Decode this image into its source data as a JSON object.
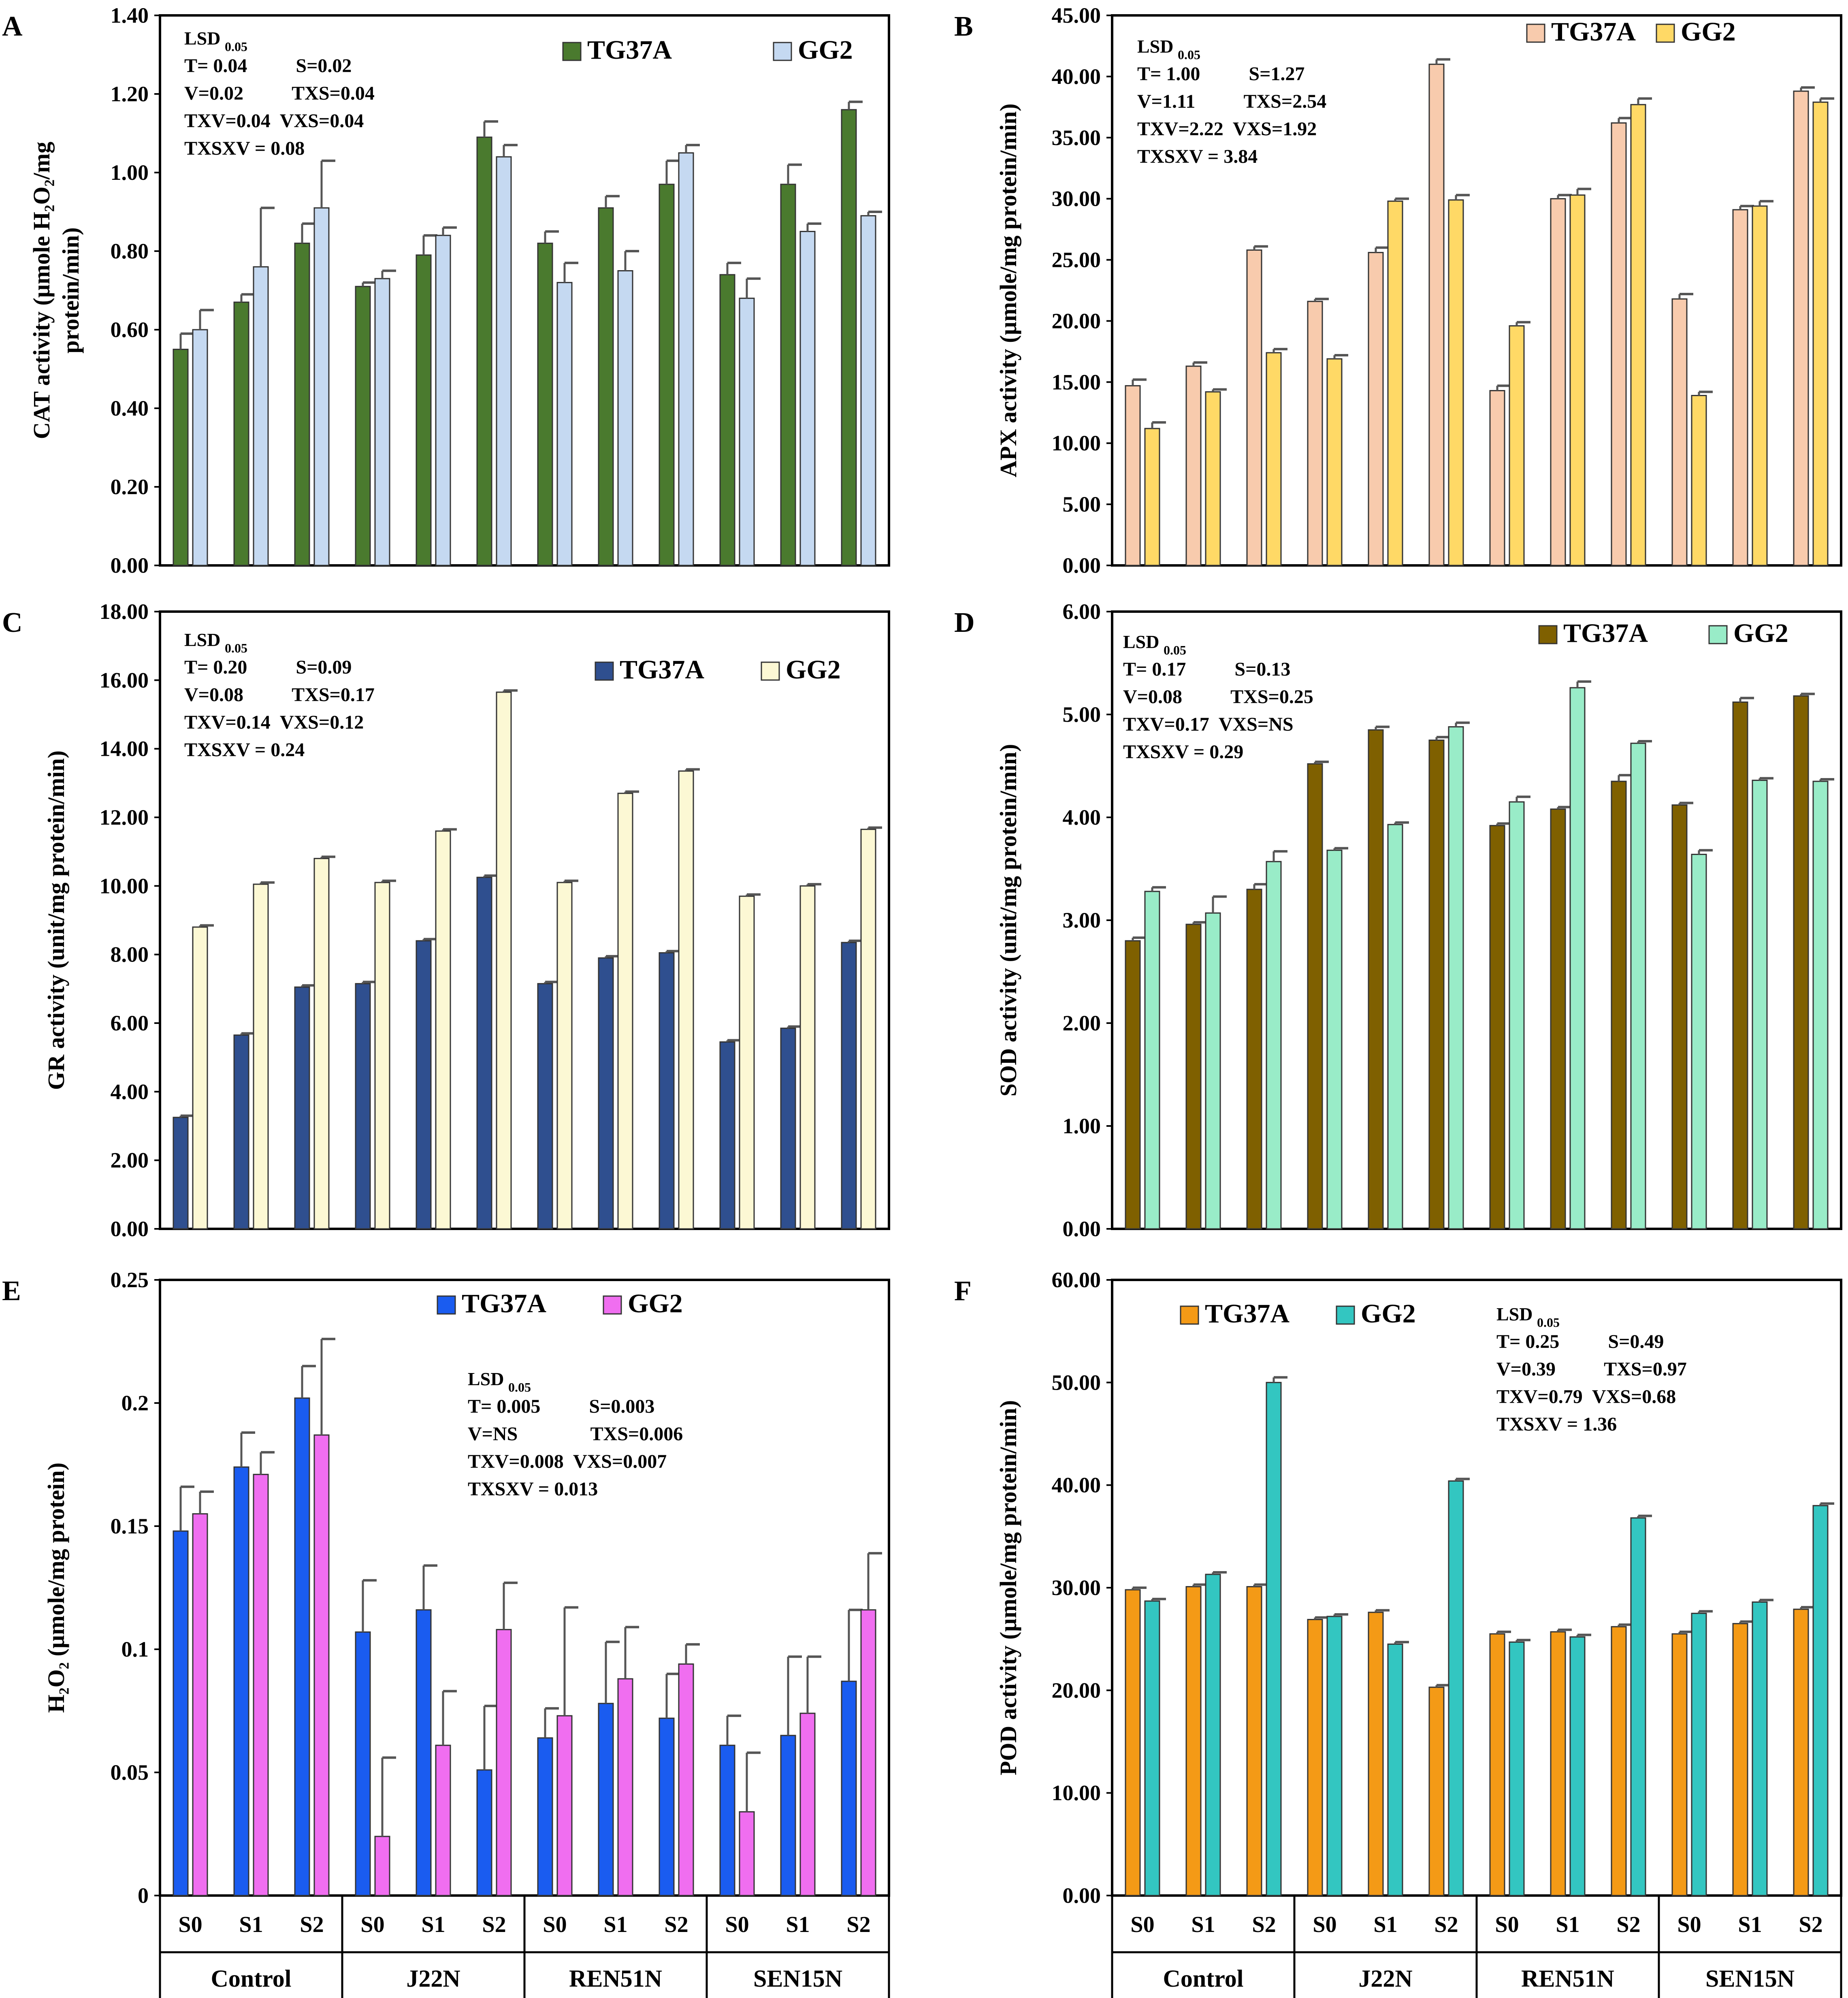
{
  "figure": {
    "category_groups": [
      "Control",
      "J22N",
      "REN51N",
      "SEN15N"
    ],
    "stress_levels": [
      "S0",
      "S1",
      "S2"
    ],
    "lsd_prefix": "LSD",
    "lsd_subscript": "0.05"
  },
  "chart_data": [
    {
      "panel": "A",
      "type": "bar",
      "ylabel_lines": [
        "CAT activity (µmole H₂O₂/mg",
        "protein/min)"
      ],
      "ylim": [
        0,
        1.4
      ],
      "ytick_labels": [
        "0.00",
        "0.20",
        "0.40",
        "0.60",
        "0.80",
        "1.00",
        "1.20",
        "1.40"
      ],
      "legend_position": "top-right",
      "lsd_lines": [
        "T= 0.04          S=0.02",
        "V=0.02          TXS=0.04",
        "TXV=0.04  VXS=0.04",
        "TXSXV = 0.08"
      ],
      "series": [
        {
          "name": "TG37A",
          "color": "#4a7a2e",
          "values": [
            0.55,
            0.67,
            0.82,
            0.71,
            0.79,
            1.09,
            0.82,
            0.91,
            0.97,
            0.74,
            0.97,
            1.16
          ],
          "errors": [
            0.04,
            0.02,
            0.05,
            0.01,
            0.05,
            0.04,
            0.03,
            0.03,
            0.06,
            0.03,
            0.05,
            0.02
          ]
        },
        {
          "name": "GG2",
          "color": "#c5d9f1",
          "values": [
            0.6,
            0.76,
            0.91,
            0.73,
            0.84,
            1.04,
            0.72,
            0.75,
            1.05,
            0.68,
            0.85,
            0.89
          ],
          "errors": [
            0.05,
            0.15,
            0.12,
            0.02,
            0.02,
            0.03,
            0.05,
            0.05,
            0.02,
            0.05,
            0.02,
            0.01
          ]
        }
      ]
    },
    {
      "panel": "B",
      "type": "bar",
      "ylabel_lines": [
        "APX activity (µmole/mg protein/min)"
      ],
      "ylim": [
        0,
        45
      ],
      "ytick_labels": [
        "0.00",
        "5.00",
        "10.00",
        "15.00",
        "20.00",
        "25.00",
        "30.00",
        "35.00",
        "40.00",
        "45.00"
      ],
      "legend_position": "top-right",
      "lsd_lines": [
        "T= 1.00          S=1.27",
        "V=1.11          TXS=2.54",
        "TXV=2.22  VXS=1.92",
        "TXSXV = 3.84"
      ],
      "series": [
        {
          "name": "TG37A",
          "color": "#f8cbad",
          "values": [
            14.7,
            16.3,
            25.8,
            21.6,
            25.6,
            41.0,
            14.3,
            30.0,
            36.2,
            21.8,
            29.1,
            38.8
          ],
          "errors": [
            0.5,
            0.3,
            0.3,
            0.2,
            0.4,
            0.4,
            0.4,
            0.3,
            0.4,
            0.4,
            0.3,
            0.3
          ]
        },
        {
          "name": "GG2",
          "color": "#ffd966",
          "values": [
            11.2,
            14.2,
            17.4,
            16.9,
            29.8,
            29.9,
            19.6,
            30.3,
            37.7,
            13.9,
            29.4,
            37.9
          ],
          "errors": [
            0.5,
            0.2,
            0.3,
            0.3,
            0.2,
            0.4,
            0.3,
            0.5,
            0.5,
            0.3,
            0.4,
            0.3
          ]
        }
      ]
    },
    {
      "panel": "C",
      "type": "bar",
      "ylabel_lines": [
        "GR activity (unit/mg protein/min)"
      ],
      "ylim": [
        0,
        18
      ],
      "ytick_labels": [
        "0.00",
        "2.00",
        "4.00",
        "6.00",
        "8.00",
        "10.00",
        "12.00",
        "14.00",
        "16.00",
        "18.00"
      ],
      "legend_position": "top-right",
      "lsd_lines": [
        "T= 0.20          S=0.09",
        "V=0.08          TXS=0.17",
        "TXV=0.14  VXS=0.12",
        "TXSXV = 0.24"
      ],
      "series": [
        {
          "name": "TG37A",
          "color": "#2f4f8f",
          "values": [
            3.25,
            5.65,
            7.05,
            7.15,
            8.4,
            10.25,
            7.15,
            7.9,
            8.05,
            5.45,
            5.85,
            8.35
          ],
          "errors": [
            0.05,
            0.05,
            0.05,
            0.05,
            0.05,
            0.05,
            0.05,
            0.05,
            0.05,
            0.05,
            0.05,
            0.05
          ]
        },
        {
          "name": "GG2",
          "color": "#fcf8d4",
          "values": [
            8.8,
            10.05,
            10.8,
            10.1,
            11.6,
            15.65,
            10.1,
            12.7,
            13.35,
            9.7,
            10.0,
            11.65
          ],
          "errors": [
            0.05,
            0.05,
            0.05,
            0.05,
            0.05,
            0.05,
            0.05,
            0.05,
            0.05,
            0.05,
            0.05,
            0.05
          ]
        }
      ]
    },
    {
      "panel": "D",
      "type": "bar",
      "ylabel_lines": [
        "SOD activity (unit/mg protein/min)"
      ],
      "ylim": [
        0,
        6
      ],
      "ytick_labels": [
        "0.00",
        "1.00",
        "2.00",
        "3.00",
        "4.00",
        "5.00",
        "6.00"
      ],
      "legend_position": "top-right",
      "lsd_lines": [
        "T= 0.17          S=0.13",
        "V=0.08          TXS=0.25",
        "TXV=0.17  VXS=NS",
        "TXSXV = 0.29"
      ],
      "series": [
        {
          "name": "TG37A",
          "color": "#7f6000",
          "values": [
            2.8,
            2.96,
            3.3,
            4.52,
            4.85,
            4.75,
            3.92,
            4.08,
            4.35,
            4.12,
            5.12,
            5.18
          ],
          "errors": [
            0.03,
            0.02,
            0.05,
            0.02,
            0.03,
            0.03,
            0.02,
            0.02,
            0.06,
            0.02,
            0.04,
            0.02
          ]
        },
        {
          "name": "GG2",
          "color": "#99ecc8",
          "values": [
            3.28,
            3.07,
            3.57,
            3.68,
            3.93,
            4.88,
            4.15,
            5.26,
            4.72,
            3.64,
            4.36,
            4.35
          ],
          "errors": [
            0.04,
            0.16,
            0.1,
            0.02,
            0.02,
            0.04,
            0.05,
            0.06,
            0.02,
            0.04,
            0.02,
            0.02
          ]
        }
      ]
    },
    {
      "panel": "E",
      "type": "bar",
      "ylabel_lines": [
        "H₂O₂ (µmole/mg protein)"
      ],
      "ylim": [
        0,
        0.25
      ],
      "ytick_labels": [
        "0",
        "0.05",
        "0.1",
        "0.15",
        "0.2",
        "0.25"
      ],
      "legend_position": "top-center",
      "lsd_lines": [
        "T= 0.005          S=0.003",
        "V=NS               TXS=0.006",
        "TXV=0.008  VXS=0.007",
        "TXSXV = 0.013"
      ],
      "series": [
        {
          "name": "TG37A",
          "color": "#1a5cf0",
          "values": [
            0.148,
            0.174,
            0.202,
            0.107,
            0.116,
            0.051,
            0.064,
            0.078,
            0.072,
            0.061,
            0.065,
            0.087
          ],
          "errors": [
            0.018,
            0.014,
            0.013,
            0.021,
            0.018,
            0.026,
            0.012,
            0.025,
            0.018,
            0.012,
            0.032,
            0.029
          ]
        },
        {
          "name": "GG2",
          "color": "#f06ef0",
          "values": [
            0.155,
            0.171,
            0.187,
            0.024,
            0.061,
            0.108,
            0.073,
            0.088,
            0.094,
            0.034,
            0.074,
            0.116
          ],
          "errors": [
            0.009,
            0.009,
            0.039,
            0.032,
            0.022,
            0.019,
            0.044,
            0.021,
            0.008,
            0.024,
            0.023,
            0.023
          ]
        }
      ]
    },
    {
      "panel": "F",
      "type": "bar",
      "ylabel_lines": [
        "POD activity (µmole/mg protein/min)"
      ],
      "ylim": [
        0,
        60
      ],
      "ytick_labels": [
        "0.00",
        "10.00",
        "20.00",
        "30.00",
        "40.00",
        "50.00",
        "60.00"
      ],
      "legend_position": "top-left",
      "lsd_lines": [
        "T= 0.25          S=0.49",
        "V=0.39          TXS=0.97",
        "TXV=0.79  VXS=0.68",
        "TXSXV = 1.36"
      ],
      "series": [
        {
          "name": "TG37A",
          "color": "#f49a16",
          "values": [
            29.8,
            30.1,
            30.1,
            26.9,
            27.6,
            20.3,
            25.5,
            25.7,
            26.2,
            25.5,
            26.5,
            27.9
          ],
          "errors": [
            0.2,
            0.2,
            0.2,
            0.2,
            0.2,
            0.2,
            0.2,
            0.2,
            0.2,
            0.2,
            0.2,
            0.2
          ]
        },
        {
          "name": "GG2",
          "color": "#33c6c1",
          "values": [
            28.7,
            31.3,
            50.0,
            27.2,
            24.5,
            40.4,
            24.7,
            25.2,
            36.8,
            27.5,
            28.6,
            38.0
          ],
          "errors": [
            0.2,
            0.2,
            0.5,
            0.2,
            0.2,
            0.2,
            0.2,
            0.2,
            0.2,
            0.2,
            0.2,
            0.2
          ]
        }
      ]
    }
  ]
}
